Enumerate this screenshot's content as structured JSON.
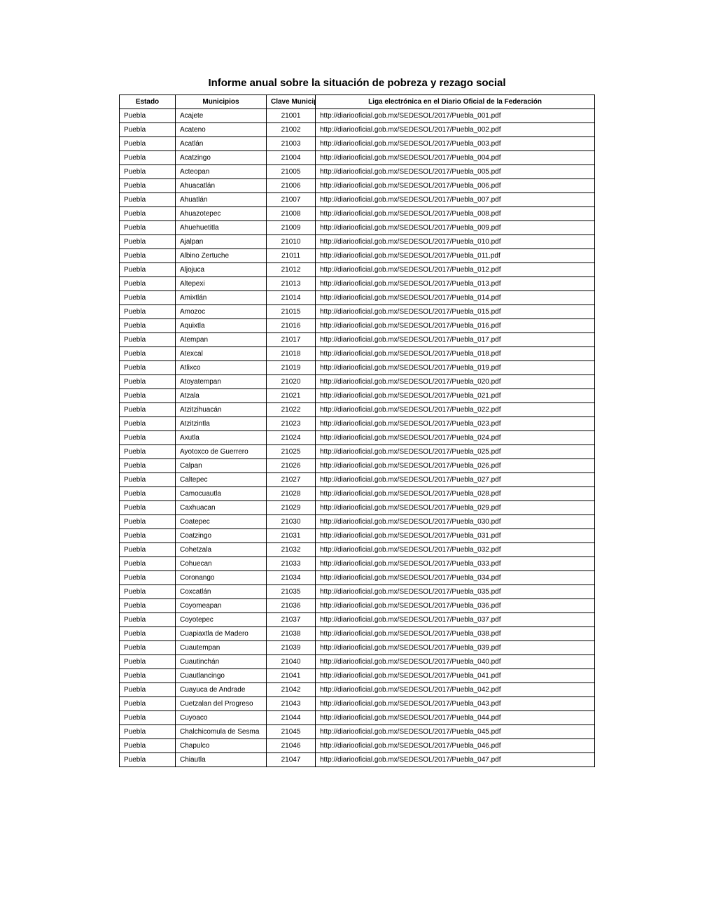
{
  "title": "Informe anual sobre la situación de pobreza y rezago social",
  "columns": [
    "Estado",
    "Municipios",
    "Clave Municipal",
    "Liga electrónica en el Diario Oficial de la Federación"
  ],
  "rows": [
    [
      "Puebla",
      "Acajete",
      "21001",
      "http://diariooficial.gob.mx/SEDESOL/2017/Puebla_001.pdf"
    ],
    [
      "Puebla",
      "Acateno",
      "21002",
      "http://diariooficial.gob.mx/SEDESOL/2017/Puebla_002.pdf"
    ],
    [
      "Puebla",
      "Acatlán",
      "21003",
      "http://diariooficial.gob.mx/SEDESOL/2017/Puebla_003.pdf"
    ],
    [
      "Puebla",
      "Acatzingo",
      "21004",
      "http://diariooficial.gob.mx/SEDESOL/2017/Puebla_004.pdf"
    ],
    [
      "Puebla",
      "Acteopan",
      "21005",
      "http://diariooficial.gob.mx/SEDESOL/2017/Puebla_005.pdf"
    ],
    [
      "Puebla",
      "Ahuacatlán",
      "21006",
      "http://diariooficial.gob.mx/SEDESOL/2017/Puebla_006.pdf"
    ],
    [
      "Puebla",
      "Ahuatlán",
      "21007",
      "http://diariooficial.gob.mx/SEDESOL/2017/Puebla_007.pdf"
    ],
    [
      "Puebla",
      "Ahuazotepec",
      "21008",
      "http://diariooficial.gob.mx/SEDESOL/2017/Puebla_008.pdf"
    ],
    [
      "Puebla",
      "Ahuehuetitla",
      "21009",
      "http://diariooficial.gob.mx/SEDESOL/2017/Puebla_009.pdf"
    ],
    [
      "Puebla",
      "Ajalpan",
      "21010",
      "http://diariooficial.gob.mx/SEDESOL/2017/Puebla_010.pdf"
    ],
    [
      "Puebla",
      "Albino Zertuche",
      "21011",
      "http://diariooficial.gob.mx/SEDESOL/2017/Puebla_011.pdf"
    ],
    [
      "Puebla",
      "Aljojuca",
      "21012",
      "http://diariooficial.gob.mx/SEDESOL/2017/Puebla_012.pdf"
    ],
    [
      "Puebla",
      "Altepexi",
      "21013",
      "http://diariooficial.gob.mx/SEDESOL/2017/Puebla_013.pdf"
    ],
    [
      "Puebla",
      "Amixtlán",
      "21014",
      "http://diariooficial.gob.mx/SEDESOL/2017/Puebla_014.pdf"
    ],
    [
      "Puebla",
      "Amozoc",
      "21015",
      "http://diariooficial.gob.mx/SEDESOL/2017/Puebla_015.pdf"
    ],
    [
      "Puebla",
      "Aquixtla",
      "21016",
      "http://diariooficial.gob.mx/SEDESOL/2017/Puebla_016.pdf"
    ],
    [
      "Puebla",
      "Atempan",
      "21017",
      "http://diariooficial.gob.mx/SEDESOL/2017/Puebla_017.pdf"
    ],
    [
      "Puebla",
      "Atexcal",
      "21018",
      "http://diariooficial.gob.mx/SEDESOL/2017/Puebla_018.pdf"
    ],
    [
      "Puebla",
      "Atlixco",
      "21019",
      "http://diariooficial.gob.mx/SEDESOL/2017/Puebla_019.pdf"
    ],
    [
      "Puebla",
      "Atoyatempan",
      "21020",
      "http://diariooficial.gob.mx/SEDESOL/2017/Puebla_020.pdf"
    ],
    [
      "Puebla",
      "Atzala",
      "21021",
      "http://diariooficial.gob.mx/SEDESOL/2017/Puebla_021.pdf"
    ],
    [
      "Puebla",
      "Atzitzihuacán",
      "21022",
      "http://diariooficial.gob.mx/SEDESOL/2017/Puebla_022.pdf"
    ],
    [
      "Puebla",
      "Atzitzintla",
      "21023",
      "http://diariooficial.gob.mx/SEDESOL/2017/Puebla_023.pdf"
    ],
    [
      "Puebla",
      "Axutla",
      "21024",
      "http://diariooficial.gob.mx/SEDESOL/2017/Puebla_024.pdf"
    ],
    [
      "Puebla",
      "Ayotoxco de Guerrero",
      "21025",
      "http://diariooficial.gob.mx/SEDESOL/2017/Puebla_025.pdf"
    ],
    [
      "Puebla",
      "Calpan",
      "21026",
      "http://diariooficial.gob.mx/SEDESOL/2017/Puebla_026.pdf"
    ],
    [
      "Puebla",
      "Caltepec",
      "21027",
      "http://diariooficial.gob.mx/SEDESOL/2017/Puebla_027.pdf"
    ],
    [
      "Puebla",
      "Camocuautla",
      "21028",
      "http://diariooficial.gob.mx/SEDESOL/2017/Puebla_028.pdf"
    ],
    [
      "Puebla",
      "Caxhuacan",
      "21029",
      "http://diariooficial.gob.mx/SEDESOL/2017/Puebla_029.pdf"
    ],
    [
      "Puebla",
      "Coatepec",
      "21030",
      "http://diariooficial.gob.mx/SEDESOL/2017/Puebla_030.pdf"
    ],
    [
      "Puebla",
      "Coatzingo",
      "21031",
      "http://diariooficial.gob.mx/SEDESOL/2017/Puebla_031.pdf"
    ],
    [
      "Puebla",
      "Cohetzala",
      "21032",
      "http://diariooficial.gob.mx/SEDESOL/2017/Puebla_032.pdf"
    ],
    [
      "Puebla",
      "Cohuecan",
      "21033",
      "http://diariooficial.gob.mx/SEDESOL/2017/Puebla_033.pdf"
    ],
    [
      "Puebla",
      "Coronango",
      "21034",
      "http://diariooficial.gob.mx/SEDESOL/2017/Puebla_034.pdf"
    ],
    [
      "Puebla",
      "Coxcatlán",
      "21035",
      "http://diariooficial.gob.mx/SEDESOL/2017/Puebla_035.pdf"
    ],
    [
      "Puebla",
      "Coyomeapan",
      "21036",
      "http://diariooficial.gob.mx/SEDESOL/2017/Puebla_036.pdf"
    ],
    [
      "Puebla",
      "Coyotepec",
      "21037",
      "http://diariooficial.gob.mx/SEDESOL/2017/Puebla_037.pdf"
    ],
    [
      "Puebla",
      "Cuapiaxtla de Madero",
      "21038",
      "http://diariooficial.gob.mx/SEDESOL/2017/Puebla_038.pdf"
    ],
    [
      "Puebla",
      "Cuautempan",
      "21039",
      "http://diariooficial.gob.mx/SEDESOL/2017/Puebla_039.pdf"
    ],
    [
      "Puebla",
      "Cuautinchán",
      "21040",
      "http://diariooficial.gob.mx/SEDESOL/2017/Puebla_040.pdf"
    ],
    [
      "Puebla",
      "Cuautlancingo",
      "21041",
      "http://diariooficial.gob.mx/SEDESOL/2017/Puebla_041.pdf"
    ],
    [
      "Puebla",
      "Cuayuca de Andrade",
      "21042",
      "http://diariooficial.gob.mx/SEDESOL/2017/Puebla_042.pdf"
    ],
    [
      "Puebla",
      "Cuetzalan del Progreso",
      "21043",
      "http://diariooficial.gob.mx/SEDESOL/2017/Puebla_043.pdf"
    ],
    [
      "Puebla",
      "Cuyoaco",
      "21044",
      "http://diariooficial.gob.mx/SEDESOL/2017/Puebla_044.pdf"
    ],
    [
      "Puebla",
      "Chalchicomula de Sesma",
      "21045",
      "http://diariooficial.gob.mx/SEDESOL/2017/Puebla_045.pdf"
    ],
    [
      "Puebla",
      "Chapulco",
      "21046",
      "http://diariooficial.gob.mx/SEDESOL/2017/Puebla_046.pdf"
    ],
    [
      "Puebla",
      "Chiautla",
      "21047",
      "http://diariooficial.gob.mx/SEDESOL/2017/Puebla_047.pdf"
    ]
  ],
  "style": {
    "background_color": "#ffffff",
    "border_color": "#000000",
    "title_fontsize": 15,
    "cell_fontsize": 10,
    "text_color": "#000000"
  }
}
